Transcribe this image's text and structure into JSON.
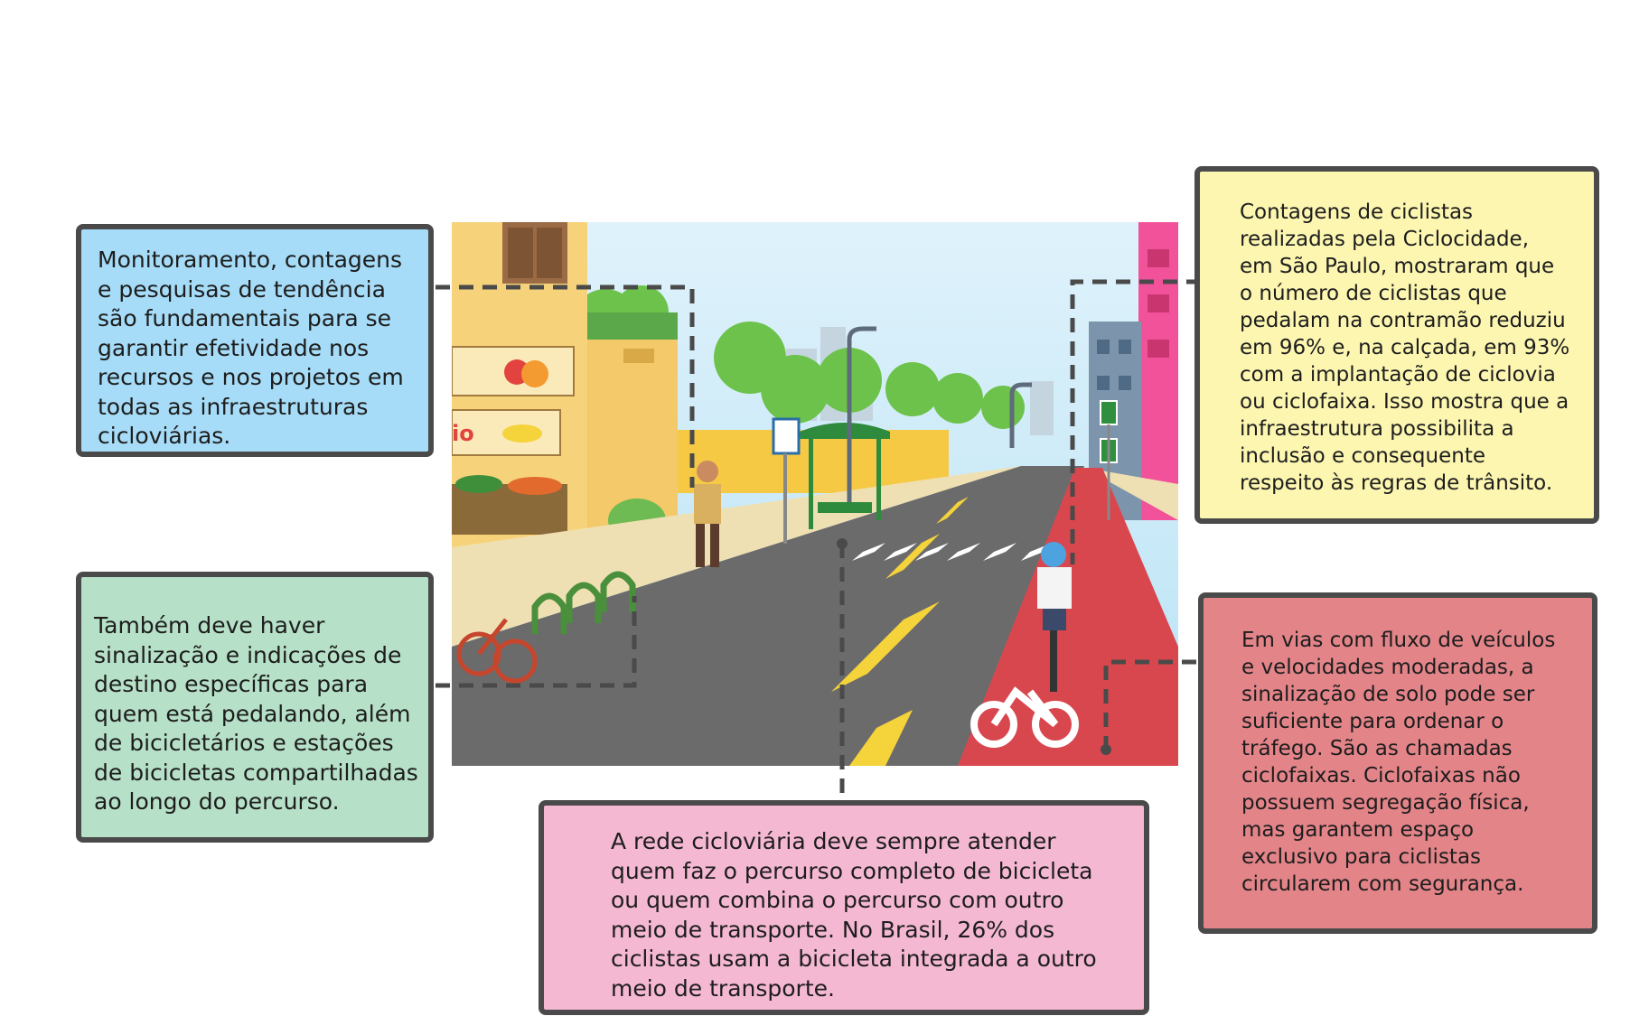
{
  "callouts": {
    "monitoring": "Monitoramento, contagens\ne pesquisas de tendência\nsão fundamentais para se\ngarantir efetividade nos\nrecursos e nos projetos em\ntodas as  infraestruturas\n cicloviárias.",
    "signage": "Também deve haver\nsinalização e indicações de\ndestino específicas para\nquem está pedalando, além\nde bicicletários e estações\nde bicicletas compartilhadas\nao longo do percurso.",
    "network": "A rede cicloviária deve sempre atender\nquem faz o percurso completo de bicicleta\nou quem combina o percurso com outro\nmeio de transporte. No Brasil, 26% dos\nciclistas usam a bicicleta integrada a outro\nmeio de transporte.",
    "counts": "Contagens de ciclistas\nrealizadas pela Ciclocidade,\nem São Paulo, mostraram que\no número de ciclistas que\npedalam na contramão reduziu\nem 96% e, na calçada, em 93%\ncom a implantação de ciclovia\nou ciclofaixa. Isso mostra que a\ninfraestrutura possibilita a\ninclusão e consequente\nrespeito às regras de trânsito.",
    "lanes": "Em vias com fluxo de veículos\ne velocidades moderadas, a\nsinalização de solo pode ser\nsuficiente para ordenar o\ntráfego. São as chamadas\nciclofaixas. Ciclofaixas não\npossuem segregação física,\nmas garantem espaço\nexclusivo para ciclistas\ncircularem com segurança."
  },
  "store_sign": "io",
  "colors": {
    "monitoring_bg": "#a6dcf7",
    "signage_bg": "#b6e0c7",
    "network_bg": "#f5b8d2",
    "counts_bg": "#fcf6b1",
    "lanes_bg": "#e38489",
    "border": "#4a4a4a",
    "bike_lane": "#d9474e",
    "asphalt": "#6b6b6b"
  }
}
